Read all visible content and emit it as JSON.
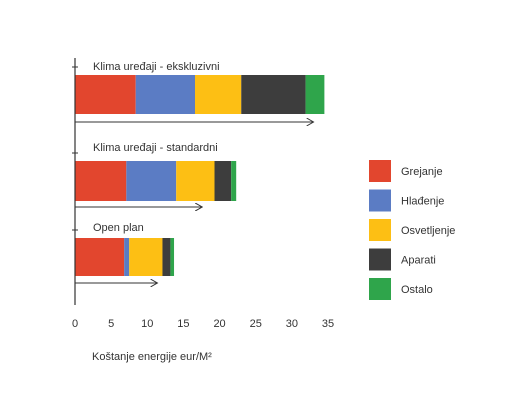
{
  "chart_data": {
    "type": "bar",
    "orientation": "horizontal",
    "stacked": true,
    "categories": [
      "Klima uređaji - ekskluzivni",
      "Klima uređaji - standardni",
      "Open plan"
    ],
    "series": [
      {
        "name": "Grejanje",
        "values": [
          8.4,
          7.1,
          6.8
        ],
        "color": "#e2462e"
      },
      {
        "name": "Hlađenje",
        "values": [
          8.2,
          6.9,
          0.7
        ],
        "color": "#5b7cc4"
      },
      {
        "name": "Osvetljenje",
        "values": [
          6.4,
          5.3,
          4.6
        ],
        "color": "#fdbf14"
      },
      {
        "name": "Aparati",
        "values": [
          8.9,
          2.3,
          1.1
        ],
        "color": "#3d3d3d"
      },
      {
        "name": "Ostalo",
        "values": [
          2.6,
          0.7,
          0.5
        ],
        "color": "#2fa54b"
      }
    ],
    "arrows": [
      33.0,
      17.6,
      11.4
    ],
    "xlim": [
      0,
      35
    ],
    "xticks": [
      "0",
      "5",
      "10",
      "15",
      "20",
      "25",
      "30",
      "35"
    ],
    "xlabel": "Koštanje energije eur/M²",
    "legend_position": "right",
    "grid": false
  }
}
